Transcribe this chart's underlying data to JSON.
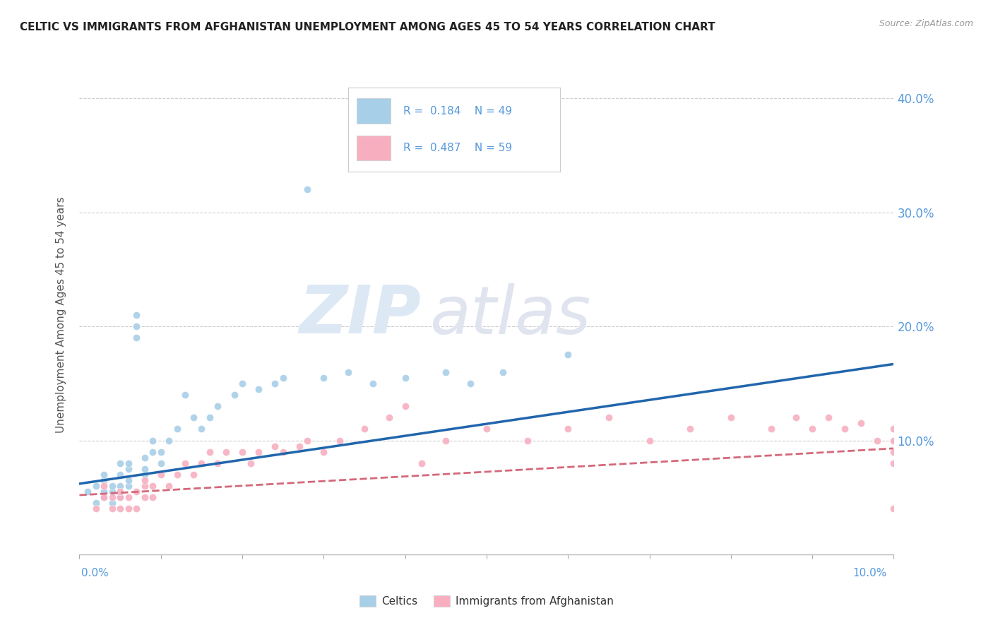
{
  "title": "CELTIC VS IMMIGRANTS FROM AFGHANISTAN UNEMPLOYMENT AMONG AGES 45 TO 54 YEARS CORRELATION CHART",
  "source": "Source: ZipAtlas.com",
  "ylabel": "Unemployment Among Ages 45 to 54 years",
  "xlim": [
    0.0,
    0.1
  ],
  "ylim": [
    0.0,
    0.42
  ],
  "yticks": [
    0.0,
    0.1,
    0.2,
    0.3,
    0.4
  ],
  "celtics_color": "#a8cfe8",
  "afghanistan_color": "#f7afc0",
  "celtics_line_color": "#2166ac",
  "afghanistan_line_color": "#d4687a",
  "celtics_R": 0.184,
  "celtics_N": 49,
  "afghanistan_R": 0.487,
  "afghanistan_N": 59,
  "celtics_x": [
    0.001,
    0.002,
    0.002,
    0.003,
    0.003,
    0.003,
    0.003,
    0.004,
    0.004,
    0.004,
    0.005,
    0.005,
    0.005,
    0.005,
    0.006,
    0.006,
    0.006,
    0.006,
    0.007,
    0.007,
    0.007,
    0.008,
    0.008,
    0.008,
    0.009,
    0.009,
    0.01,
    0.01,
    0.011,
    0.012,
    0.013,
    0.014,
    0.015,
    0.016,
    0.017,
    0.019,
    0.02,
    0.022,
    0.024,
    0.025,
    0.028,
    0.03,
    0.033,
    0.036,
    0.04,
    0.045,
    0.048,
    0.052,
    0.06
  ],
  "celtics_y": [
    0.055,
    0.045,
    0.06,
    0.05,
    0.055,
    0.065,
    0.07,
    0.045,
    0.055,
    0.06,
    0.05,
    0.06,
    0.07,
    0.08,
    0.06,
    0.065,
    0.075,
    0.08,
    0.19,
    0.2,
    0.21,
    0.07,
    0.075,
    0.085,
    0.09,
    0.1,
    0.08,
    0.09,
    0.1,
    0.11,
    0.14,
    0.12,
    0.11,
    0.12,
    0.13,
    0.14,
    0.15,
    0.145,
    0.15,
    0.155,
    0.32,
    0.155,
    0.16,
    0.15,
    0.155,
    0.16,
    0.15,
    0.16,
    0.175
  ],
  "afghanistan_x": [
    0.002,
    0.003,
    0.003,
    0.004,
    0.004,
    0.005,
    0.005,
    0.005,
    0.006,
    0.006,
    0.007,
    0.007,
    0.008,
    0.008,
    0.008,
    0.009,
    0.009,
    0.01,
    0.011,
    0.012,
    0.013,
    0.014,
    0.015,
    0.016,
    0.017,
    0.018,
    0.02,
    0.021,
    0.022,
    0.024,
    0.025,
    0.027,
    0.028,
    0.03,
    0.032,
    0.035,
    0.038,
    0.04,
    0.042,
    0.045,
    0.05,
    0.055,
    0.06,
    0.065,
    0.07,
    0.075,
    0.08,
    0.085,
    0.088,
    0.09,
    0.092,
    0.094,
    0.096,
    0.098,
    0.1,
    0.1,
    0.1,
    0.1,
    0.1
  ],
  "afghanistan_y": [
    0.04,
    0.05,
    0.06,
    0.04,
    0.05,
    0.04,
    0.05,
    0.055,
    0.04,
    0.05,
    0.04,
    0.055,
    0.05,
    0.06,
    0.065,
    0.05,
    0.06,
    0.07,
    0.06,
    0.07,
    0.08,
    0.07,
    0.08,
    0.09,
    0.08,
    0.09,
    0.09,
    0.08,
    0.09,
    0.095,
    0.09,
    0.095,
    0.1,
    0.09,
    0.1,
    0.11,
    0.12,
    0.13,
    0.08,
    0.1,
    0.11,
    0.1,
    0.11,
    0.12,
    0.1,
    0.11,
    0.12,
    0.11,
    0.12,
    0.11,
    0.12,
    0.11,
    0.115,
    0.1,
    0.08,
    0.09,
    0.1,
    0.04,
    0.11
  ],
  "background_color": "#ffffff",
  "grid_color": "#cccccc",
  "tick_label_color": "#5599dd",
  "title_color": "#222222",
  "source_color": "#999999",
  "ylabel_color": "#555555"
}
